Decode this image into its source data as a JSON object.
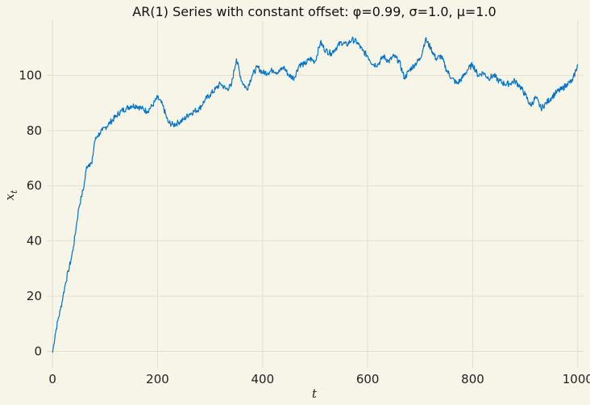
{
  "chart_data": {
    "type": "line",
    "title": "AR(1) Series with constant offset: φ=0.99, σ=1.0, μ=1.0",
    "xlabel": "t",
    "ylabel_base": "x",
    "ylabel_sub": "t",
    "xlim": [
      -11,
      1011
    ],
    "ylim": [
      -6,
      120
    ],
    "xticks": [
      0,
      200,
      400,
      600,
      800,
      1000
    ],
    "yticks": [
      0,
      20,
      40,
      60,
      80,
      100
    ],
    "grid": true,
    "line_color": "#0072c6",
    "background": "#f7f4e8",
    "series": [
      {
        "x": [
          0,
          5,
          10,
          15,
          20,
          25,
          30,
          35,
          40,
          45,
          50,
          55,
          60,
          65,
          70,
          75,
          80,
          85,
          90,
          95,
          100,
          110,
          120,
          130,
          140,
          150,
          160,
          170,
          180,
          190,
          200,
          210,
          220,
          230,
          240,
          250,
          260,
          270,
          280,
          290,
          300,
          310,
          320,
          330,
          340,
          350,
          360,
          370,
          380,
          390,
          400,
          410,
          420,
          430,
          440,
          450,
          460,
          470,
          480,
          490,
          500,
          510,
          520,
          530,
          540,
          550,
          560,
          570,
          580,
          590,
          600,
          610,
          620,
          630,
          640,
          650,
          660,
          670,
          680,
          690,
          700,
          710,
          720,
          730,
          740,
          750,
          760,
          770,
          780,
          790,
          800,
          810,
          820,
          830,
          840,
          850,
          860,
          870,
          880,
          890,
          900,
          910,
          920,
          930,
          940,
          950,
          960,
          970,
          980,
          990,
          1000
        ],
        "y": [
          -0.5,
          6,
          11,
          15,
          20,
          25,
          29,
          33,
          38,
          45,
          52,
          56,
          60,
          67,
          68,
          68,
          76,
          78,
          79,
          80,
          81,
          83,
          85,
          87,
          88,
          89,
          89,
          88,
          87,
          89,
          92,
          89,
          83,
          82,
          83,
          84,
          86,
          87,
          88,
          91,
          93,
          95,
          97,
          95,
          96,
          106,
          98,
          95,
          100,
          103,
          101,
          101,
          102,
          101,
          103,
          100,
          99,
          104,
          104,
          106,
          105,
          112,
          109,
          108,
          110,
          112,
          111,
          113,
          112,
          109,
          107,
          104,
          104,
          107,
          105,
          107,
          105,
          99,
          102,
          104,
          106,
          113,
          110,
          106,
          107,
          102,
          99,
          97,
          99,
          102,
          104,
          100,
          101,
          99,
          100,
          98,
          97,
          97,
          98,
          96,
          93,
          89,
          92,
          88,
          90,
          92,
          94,
          95,
          97,
          98,
          104
        ]
      }
    ]
  }
}
